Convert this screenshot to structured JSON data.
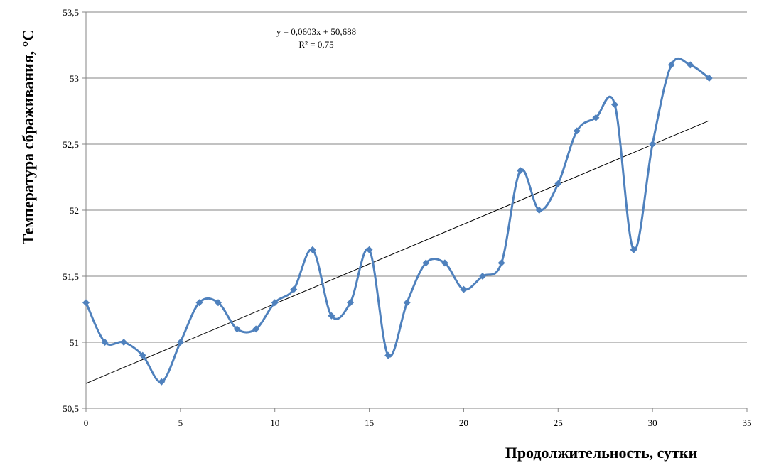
{
  "chart_data": {
    "type": "line",
    "title": "",
    "xlabel": "Продолжительность, сутки",
    "ylabel": "Температура сбраживания, °С",
    "xlim": [
      0,
      35
    ],
    "ylim": [
      50.5,
      53.5
    ],
    "x_ticks": [
      "0",
      "5",
      "10",
      "15",
      "20",
      "25",
      "30",
      "35"
    ],
    "y_ticks": [
      "50,5",
      "51",
      "51,5",
      "52",
      "52,5",
      "53",
      "53,5"
    ],
    "grid": "horizontal",
    "smoothed": true,
    "series": [
      {
        "x": [
          0,
          1,
          2,
          3,
          4,
          5,
          6,
          7,
          8,
          9,
          10,
          11,
          12,
          13,
          14,
          15,
          16,
          17,
          18,
          19,
          20,
          21,
          22,
          23,
          24,
          25,
          26,
          27,
          28,
          29,
          30,
          31,
          32,
          33
        ],
        "y": [
          51.3,
          51.0,
          51.0,
          50.9,
          50.7,
          51.0,
          51.3,
          51.3,
          51.1,
          51.1,
          51.3,
          51.4,
          51.7,
          51.2,
          51.3,
          51.7,
          50.9,
          51.3,
          51.6,
          51.6,
          51.4,
          51.5,
          51.6,
          52.3,
          52.0,
          52.2,
          52.6,
          52.7,
          52.8,
          51.7,
          52.5,
          53.1,
          53.1,
          53.0
        ],
        "color": "#4f81bd",
        "marker": "diamond"
      }
    ],
    "trendline": {
      "type": "linear",
      "slope": 0.0603,
      "intercept": 50.688,
      "x_range": [
        0,
        33
      ],
      "color": "#000000",
      "equation": "y = 0,0603x + 50,688",
      "r2": "R² = 0,75"
    }
  }
}
